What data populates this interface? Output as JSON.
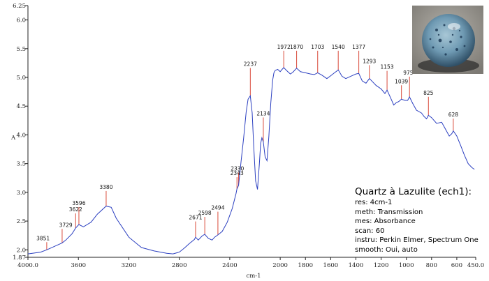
{
  "chart_data": {
    "type": "line",
    "xlabel": "cm-1",
    "ylabel": "A",
    "xlim": [
      4000,
      450
    ],
    "ylim": [
      1.87,
      6.25
    ],
    "x_ticks": [
      "4000.0",
      "3600",
      "3200",
      "2800",
      "2400",
      "2000",
      "1800",
      "1600",
      "1400",
      "1200",
      "1000",
      "800",
      "600",
      "450.0"
    ],
    "y_ticks": [
      "1.87",
      "2.0",
      "2.5",
      "3.0",
      "3.5",
      "4.0",
      "4.5",
      "5.0",
      "5.5",
      "6.0",
      "6.25"
    ],
    "series": [
      {
        "color": "#2b3fc0",
        "x": [
          4000,
          3900,
          3851,
          3800,
          3729,
          3700,
          3650,
          3622,
          3596,
          3560,
          3500,
          3450,
          3380,
          3340,
          3300,
          3200,
          3100,
          3000,
          2900,
          2850,
          2800,
          2760,
          2720,
          2680,
          2671,
          2650,
          2620,
          2598,
          2570,
          2540,
          2520,
          2494,
          2460,
          2420,
          2380,
          2350,
          2343,
          2330,
          2310,
          2290,
          2270,
          2255,
          2237,
          2222,
          2210,
          2195,
          2180,
          2165,
          2155,
          2145,
          2134,
          2120,
          2105,
          2090,
          2075,
          2060,
          2050,
          2040,
          2020,
          2000,
          1985,
          1972,
          1950,
          1920,
          1900,
          1870,
          1840,
          1800,
          1760,
          1730,
          1703,
          1670,
          1630,
          1600,
          1570,
          1540,
          1510,
          1480,
          1450,
          1420,
          1400,
          1377,
          1350,
          1320,
          1293,
          1270,
          1240,
          1200,
          1170,
          1153,
          1120,
          1100,
          1080,
          1060,
          1039,
          1010,
          990,
          975,
          950,
          920,
          880,
          860,
          840,
          825,
          800,
          760,
          720,
          690,
          660,
          640,
          628,
          600,
          570,
          540,
          510,
          480,
          460
        ],
        "y": [
          1.93,
          1.96,
          2.0,
          2.05,
          2.12,
          2.17,
          2.28,
          2.38,
          2.44,
          2.4,
          2.48,
          2.62,
          2.76,
          2.74,
          2.55,
          2.22,
          2.04,
          1.98,
          1.94,
          1.93,
          1.96,
          2.03,
          2.11,
          2.18,
          2.22,
          2.17,
          2.24,
          2.27,
          2.2,
          2.17,
          2.22,
          2.26,
          2.32,
          2.48,
          2.72,
          2.98,
          3.06,
          3.12,
          3.55,
          3.95,
          4.4,
          4.62,
          4.68,
          4.38,
          3.8,
          3.2,
          3.05,
          3.5,
          3.85,
          3.95,
          3.88,
          3.62,
          3.55,
          3.98,
          4.55,
          4.95,
          5.08,
          5.12,
          5.14,
          5.1,
          5.14,
          5.17,
          5.12,
          5.06,
          5.09,
          5.16,
          5.1,
          5.08,
          5.06,
          5.05,
          5.08,
          5.04,
          4.98,
          5.03,
          5.08,
          5.13,
          5.02,
          4.98,
          5.01,
          5.04,
          5.06,
          5.07,
          4.94,
          4.9,
          4.98,
          4.93,
          4.86,
          4.8,
          4.72,
          4.78,
          4.62,
          4.52,
          4.56,
          4.58,
          4.62,
          4.6,
          4.6,
          4.66,
          4.55,
          4.43,
          4.38,
          4.32,
          4.28,
          4.34,
          4.3,
          4.2,
          4.22,
          4.1,
          3.98,
          4.02,
          4.07,
          3.98,
          3.82,
          3.65,
          3.5,
          3.43,
          3.4
        ]
      }
    ],
    "peak_labels": [
      {
        "label": "3851",
        "x": 3851,
        "y": 2.0,
        "lx": 3880,
        "ly": 2.17
      },
      {
        "label": "3729",
        "x": 3729,
        "y": 2.12,
        "lx": 3700,
        "ly": 2.4
      },
      {
        "label": "3622",
        "x": 3622,
        "y": 2.38,
        "lx": 3622,
        "ly": 2.67
      },
      {
        "label": "3596",
        "x": 3596,
        "y": 2.44,
        "lx": 3596,
        "ly": 2.78
      },
      {
        "label": "3380",
        "x": 3380,
        "y": 2.76,
        "lx": 3380,
        "ly": 3.06
      },
      {
        "label": "2671",
        "x": 2671,
        "y": 2.22,
        "lx": 2671,
        "ly": 2.53
      },
      {
        "label": "2598",
        "x": 2598,
        "y": 2.27,
        "lx": 2598,
        "ly": 2.61
      },
      {
        "label": "2494",
        "x": 2494,
        "y": 2.26,
        "lx": 2494,
        "ly": 2.7
      },
      {
        "label": "2343",
        "x": 2343,
        "y": 3.06,
        "lx": 2343,
        "ly": 3.3
      },
      {
        "label": "2330",
        "x": 2330,
        "y": 3.12,
        "lx": 2340,
        "ly": 3.38
      },
      {
        "label": "2237",
        "x": 2237,
        "y": 4.68,
        "lx": 2237,
        "ly": 5.2
      },
      {
        "label": "2134",
        "x": 2134,
        "y": 3.88,
        "lx": 2134,
        "ly": 4.34
      },
      {
        "label": "1972",
        "x": 1972,
        "y": 5.17,
        "lx": 1972,
        "ly": 5.5
      },
      {
        "label": "1870",
        "x": 1870,
        "y": 5.16,
        "lx": 1870,
        "ly": 5.5
      },
      {
        "label": "1703",
        "x": 1703,
        "y": 5.08,
        "lx": 1703,
        "ly": 5.5
      },
      {
        "label": "1540",
        "x": 1540,
        "y": 5.13,
        "lx": 1540,
        "ly": 5.5
      },
      {
        "label": "1377",
        "x": 1377,
        "y": 5.07,
        "lx": 1377,
        "ly": 5.5
      },
      {
        "label": "1293",
        "x": 1293,
        "y": 4.98,
        "lx": 1293,
        "ly": 5.25
      },
      {
        "label": "1153",
        "x": 1153,
        "y": 4.78,
        "lx": 1153,
        "ly": 5.15
      },
      {
        "label": "1039",
        "x": 1039,
        "y": 4.62,
        "lx": 1039,
        "ly": 4.9
      },
      {
        "label": "975",
        "x": 975,
        "y": 4.66,
        "lx": 985,
        "ly": 5.05
      },
      {
        "label": "825",
        "x": 825,
        "y": 4.34,
        "lx": 825,
        "ly": 4.7
      },
      {
        "label": "628",
        "x": 628,
        "y": 4.07,
        "lx": 628,
        "ly": 4.32
      }
    ],
    "peak_marker_color": "#d94a3a",
    "axis_color": "#222222"
  },
  "info": {
    "title": "Quartz à Lazulite (ech1):",
    "lines": [
      "res: 4cm-1",
      "meth: Transmission",
      "mes: Absorbance",
      "scan: 60",
      "instru: Perkin Elmer, Spectrum One",
      "smooth: Oui, auto"
    ]
  }
}
